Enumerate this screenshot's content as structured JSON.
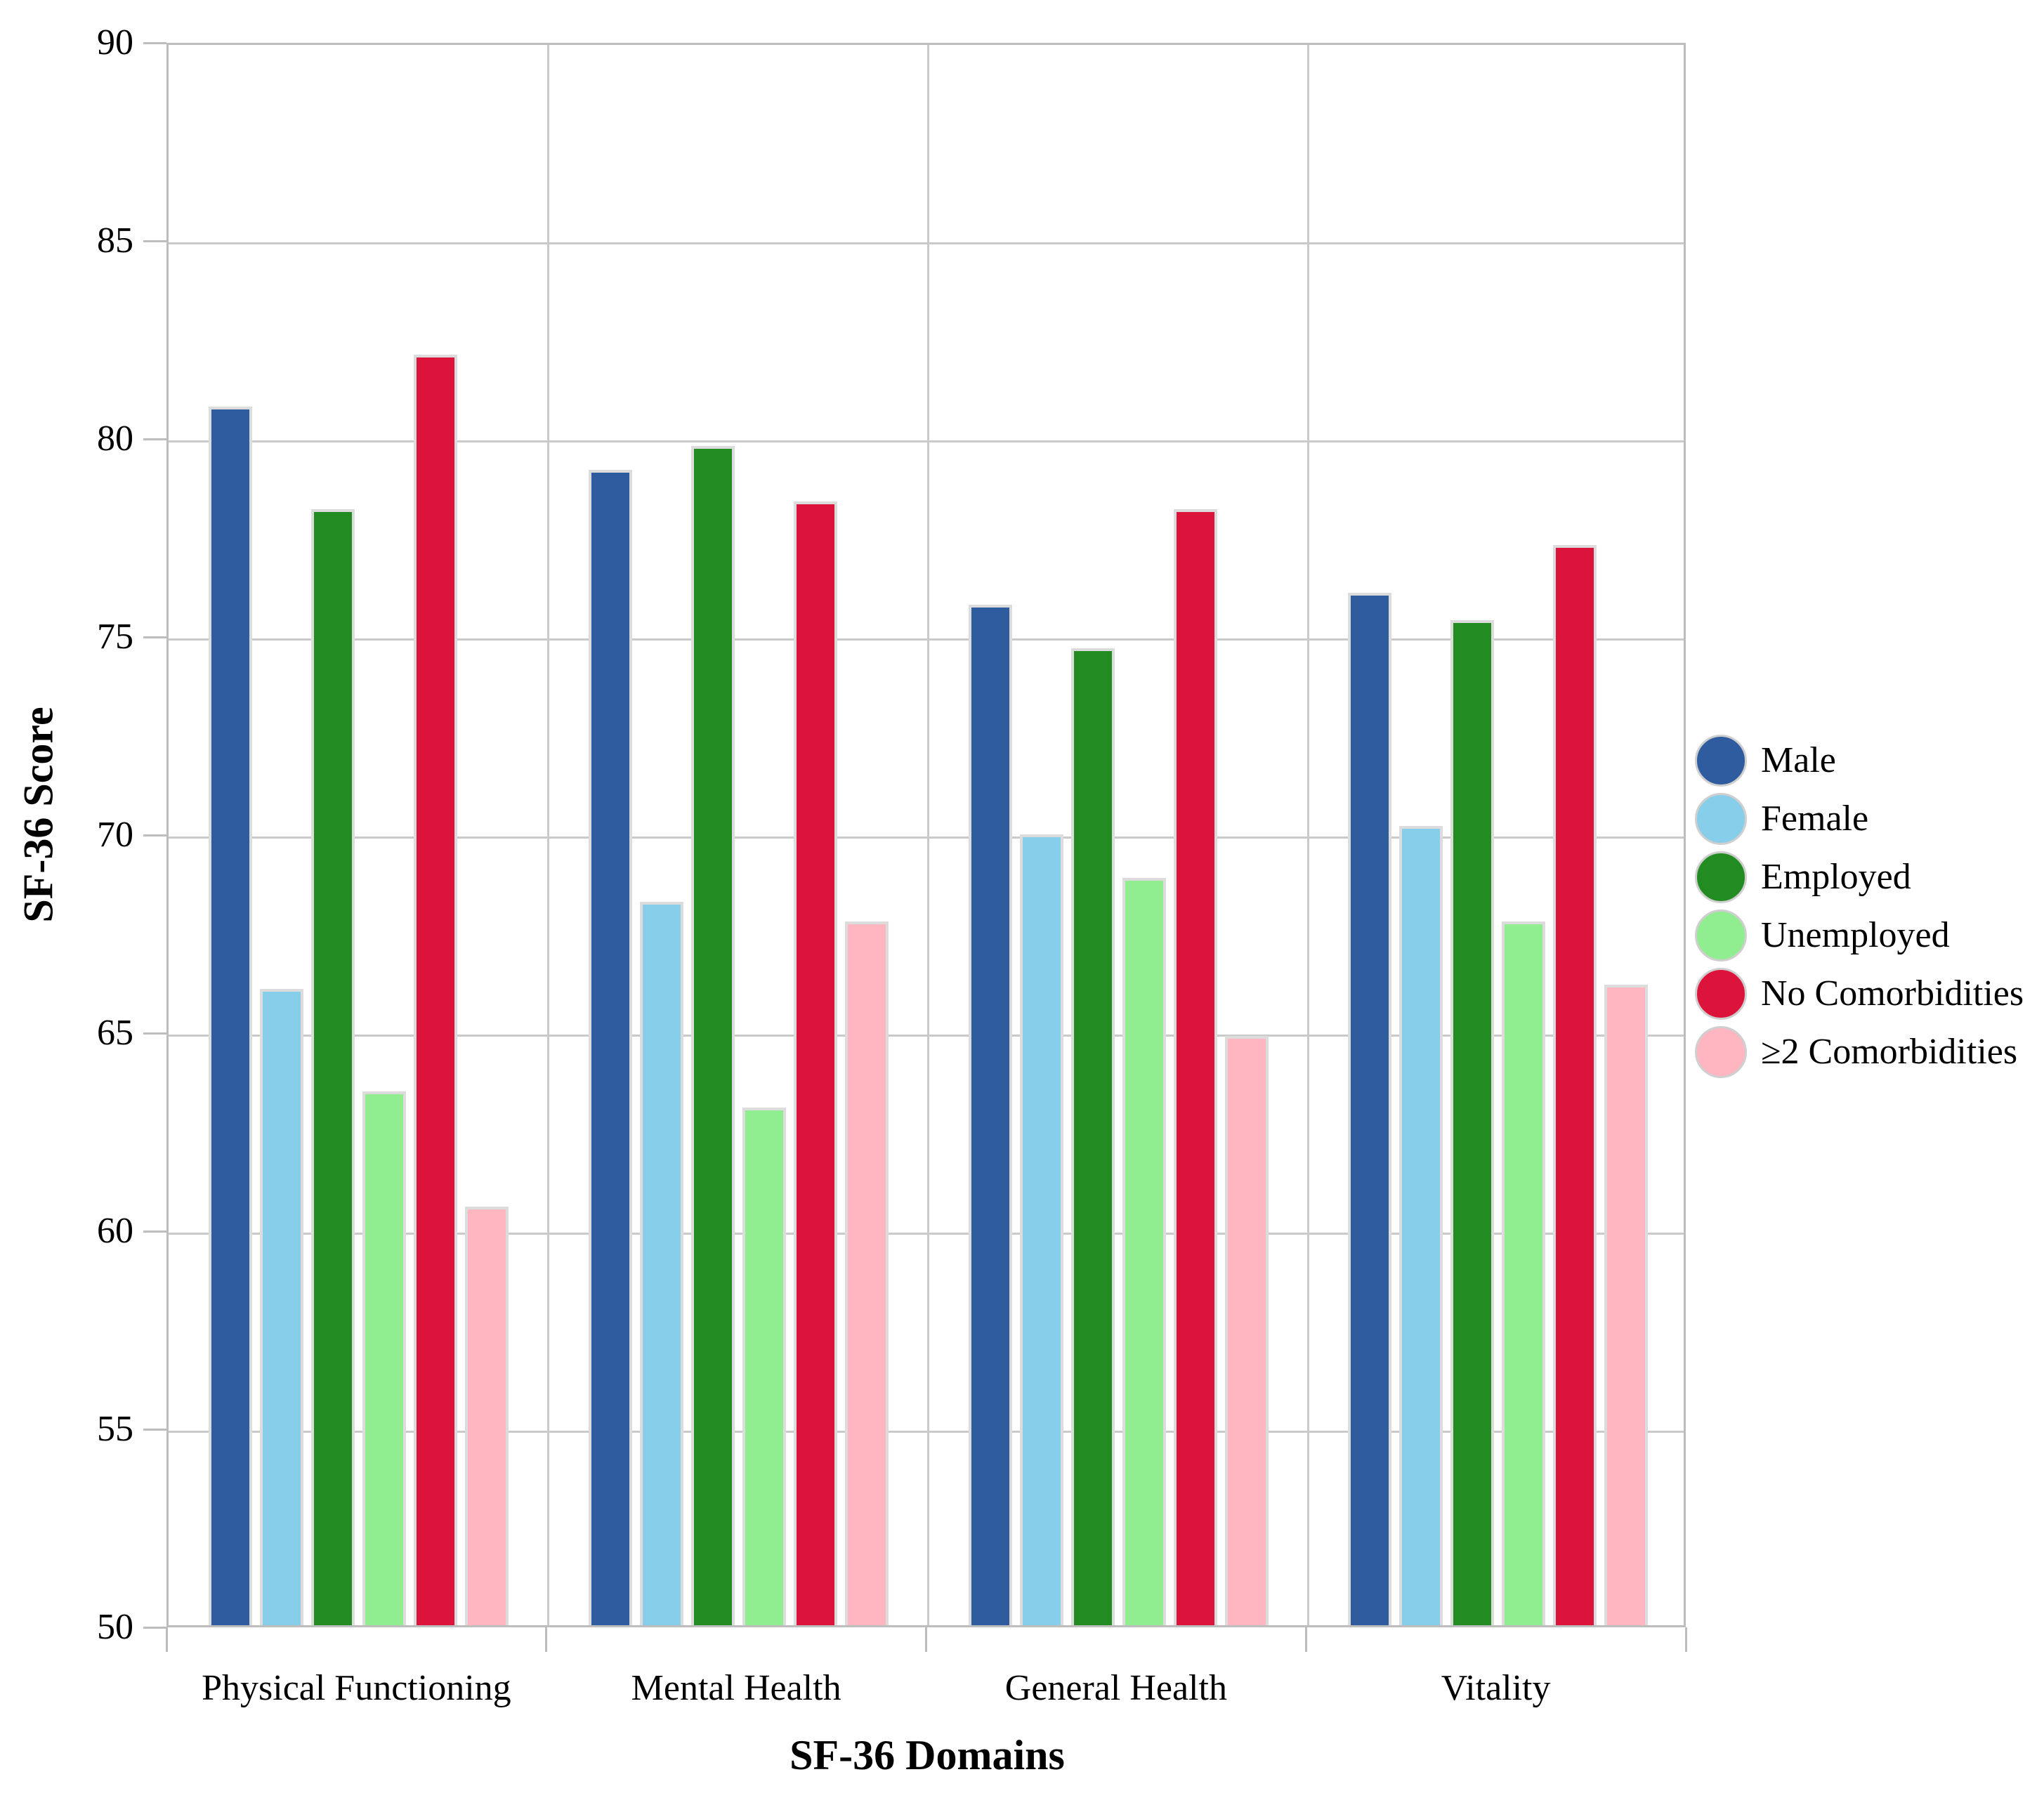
{
  "figure": {
    "y_axis_title": "SF-36 Score",
    "x_axis_title": "SF-36 Domains"
  },
  "chart_data": {
    "type": "bar",
    "title": "",
    "xlabel": "SF-36 Domains",
    "ylabel": "SF-36 Score",
    "ylim": [
      50,
      90
    ],
    "yticks": [
      50,
      55,
      60,
      65,
      70,
      75,
      80,
      85,
      90
    ],
    "grid": true,
    "legend_position": "right-center",
    "legend_marker_shape": "circle",
    "categories": [
      "Physical Functioning",
      "Mental Health",
      "General Health",
      "Vitality"
    ],
    "series": [
      {
        "name": "Male",
        "color": "#2E5C9E",
        "values": [
          80.7,
          79.1,
          75.7,
          76.0
        ]
      },
      {
        "name": "Female",
        "color": "#87CEEB",
        "values": [
          66.0,
          68.2,
          69.9,
          70.1
        ]
      },
      {
        "name": "Employed",
        "color": "#228B22",
        "values": [
          78.1,
          79.7,
          74.6,
          75.3
        ]
      },
      {
        "name": "Unemployed",
        "color": "#90EE90",
        "values": [
          63.4,
          63.0,
          68.8,
          67.7
        ]
      },
      {
        "name": "No Comorbidities",
        "color": "#DC143C",
        "values": [
          82.0,
          78.3,
          78.1,
          77.2
        ]
      },
      {
        "name": "≥2 Comorbidities",
        "color": "#FFB6C1",
        "values": [
          60.5,
          67.7,
          64.8,
          66.1
        ]
      }
    ]
  }
}
